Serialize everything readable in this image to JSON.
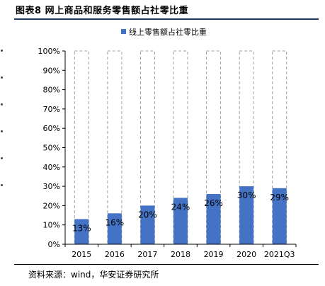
{
  "figure_title": "图表8  网上商品和服务零售额占社零比重",
  "source": "资料来源：wind，华安证券研究所",
  "colors": {
    "bar_fill": "#4472c4",
    "bar_outline": "#a0a0a0",
    "title_rule": "#1f3864"
  },
  "chart_data": {
    "type": "bar",
    "categories": [
      "2015",
      "2016",
      "2017",
      "2018",
      "2019",
      "2020",
      "2021Q3"
    ],
    "series": [
      {
        "name": "线上零售额占社零比重",
        "values": [
          13,
          16,
          20,
          24,
          26,
          30,
          29
        ],
        "labels": [
          "13%",
          "16%",
          "20%",
          "24%",
          "26%",
          "30%",
          "29%"
        ]
      }
    ],
    "y_ticks": [
      "0%",
      "10%",
      "20%",
      "30%",
      "40%",
      "50%",
      "60%",
      "70%",
      "80%",
      "90%",
      "100%"
    ],
    "ylim": [
      0,
      100
    ],
    "grid": false,
    "legend_position": "top-center",
    "bar_outline": "dashed"
  }
}
